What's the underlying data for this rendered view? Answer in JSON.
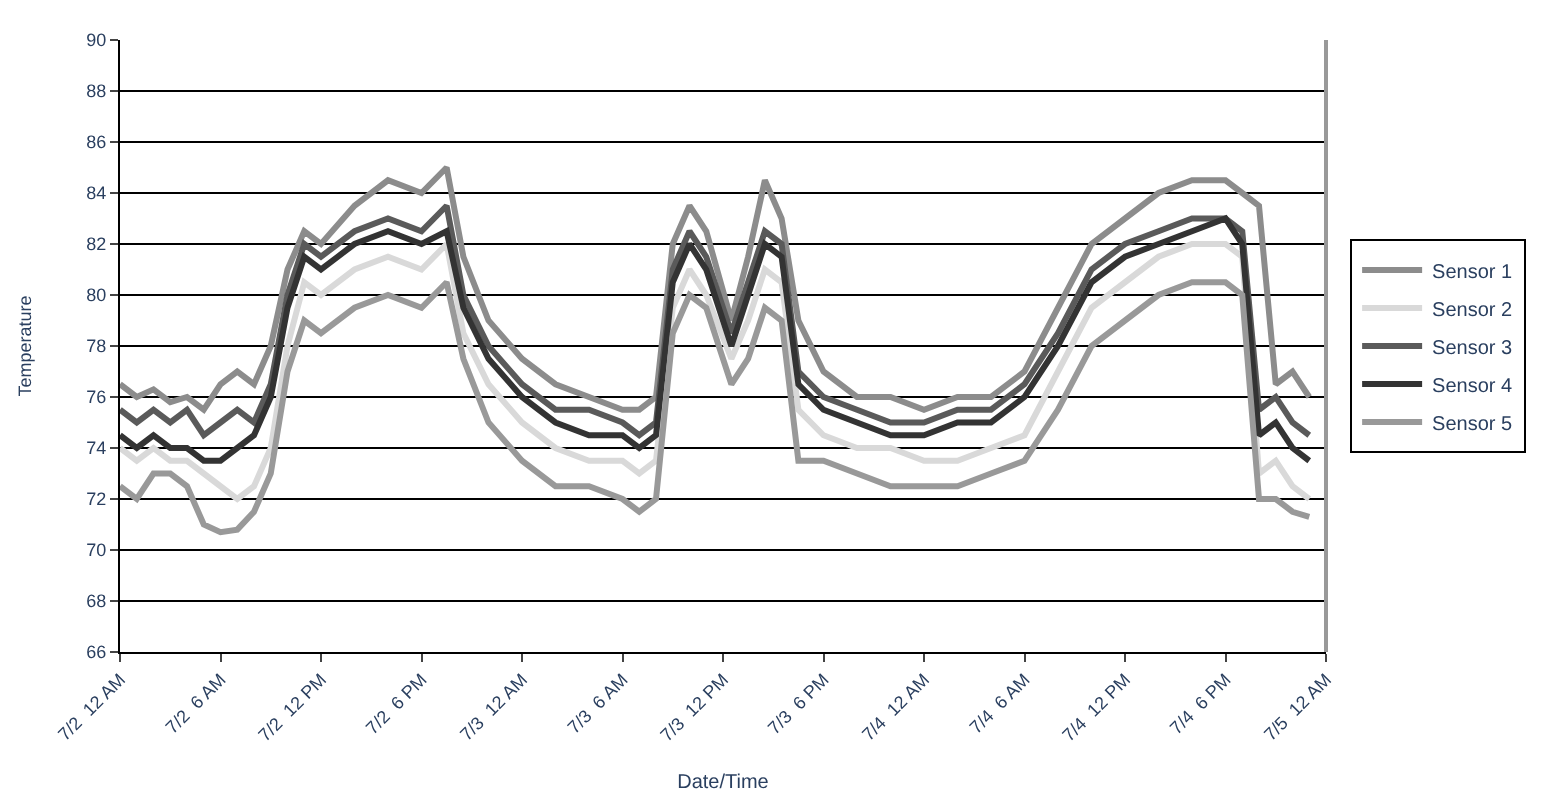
{
  "chart_data": {
    "type": "line",
    "xlabel": "Date/Time",
    "ylabel": "Temperature",
    "x": [
      "--07-02T00:00",
      "--07-02T01:00",
      "--07-02T02:00",
      "--07-02T03:00",
      "--07-02T04:00",
      "--07-02T05:00",
      "--07-02T06:00",
      "--07-02T07:00",
      "--07-02T08:00",
      "--07-02T09:00",
      "--07-02T10:00",
      "--07-02T11:00",
      "--07-02T12:00",
      "--07-02T14:00",
      "--07-02T16:00",
      "--07-02T18:00",
      "--07-02T19:30",
      "--07-02T20:30",
      "--07-02T22:00",
      "--07-03T00:00",
      "--07-03T02:00",
      "--07-03T04:00",
      "--07-03T06:00",
      "--07-03T07:00",
      "--07-03T08:00",
      "--07-03T09:00",
      "--07-03T10:00",
      "--07-03T11:00",
      "--07-03T12:30",
      "--07-03T13:30",
      "--07-03T14:30",
      "--07-03T15:30",
      "--07-03T16:30",
      "--07-03T18:00",
      "--07-03T20:00",
      "--07-03T22:00",
      "--07-04T00:00",
      "--07-04T02:00",
      "--07-04T04:00",
      "--07-04T06:00",
      "--07-04T08:00",
      "--07-04T10:00",
      "--07-04T12:00",
      "--07-04T14:00",
      "--07-04T16:00",
      "--07-04T18:00",
      "--07-04T19:00",
      "--07-04T20:00",
      "--07-04T21:00",
      "--07-04T22:00",
      "--07-04T23:00"
    ],
    "series": [
      {
        "name": "Sensor 1",
        "color": "#8c8c8c",
        "values": [
          76.5,
          76,
          76.3,
          75.8,
          76,
          75.5,
          76.5,
          77,
          76.5,
          78,
          81,
          82.5,
          82,
          83.5,
          84.5,
          84,
          85,
          81.5,
          79,
          77.5,
          76.5,
          76,
          75.5,
          75.5,
          76,
          82,
          83.5,
          82.5,
          79,
          81.5,
          84.5,
          83,
          79,
          77,
          76,
          76,
          75.5,
          76,
          76,
          77,
          79.5,
          82,
          83,
          84,
          84.5,
          84.5,
          84,
          83.5,
          76.5,
          77,
          76
        ]
      },
      {
        "name": "Sensor 2",
        "color": "#d9d9d9",
        "values": [
          74,
          73.5,
          74,
          73.5,
          73.5,
          73,
          72.5,
          72,
          72.5,
          74,
          78,
          80.5,
          80,
          81,
          81.5,
          81,
          82,
          78.5,
          76.5,
          75,
          74,
          73.5,
          73.5,
          73,
          73.5,
          79.5,
          81,
          80,
          77.5,
          79,
          81,
          80.5,
          75.5,
          74.5,
          74,
          74,
          73.5,
          73.5,
          74,
          74.5,
          77,
          79.5,
          80.5,
          81.5,
          82,
          82,
          81.5,
          73,
          73.5,
          72.5,
          72
        ]
      },
      {
        "name": "Sensor 3",
        "color": "#5a5a5a",
        "values": [
          75.5,
          75,
          75.5,
          75,
          75.5,
          74.5,
          75,
          75.5,
          75,
          76.5,
          80,
          82,
          81.5,
          82.5,
          83,
          82.5,
          83.5,
          80,
          78,
          76.5,
          75.5,
          75.5,
          75,
          74.5,
          75,
          81,
          82.5,
          81.5,
          78.5,
          80.5,
          82.5,
          82,
          77,
          76,
          75.5,
          75,
          75,
          75.5,
          75.5,
          76.5,
          78.5,
          81,
          82,
          82.5,
          83,
          83,
          82.5,
          75.5,
          76,
          75,
          74.5
        ]
      },
      {
        "name": "Sensor 4",
        "color": "#333333",
        "values": [
          74.5,
          74,
          74.5,
          74,
          74,
          73.5,
          73.5,
          74,
          74.5,
          76,
          79.5,
          81.5,
          81,
          82,
          82.5,
          82,
          82.5,
          79.5,
          77.5,
          76,
          75,
          74.5,
          74.5,
          74,
          74.5,
          80.5,
          82,
          81,
          78,
          80,
          82,
          81.5,
          76.5,
          75.5,
          75,
          74.5,
          74.5,
          75,
          75,
          76,
          78,
          80.5,
          81.5,
          82,
          82.5,
          83,
          82,
          74.5,
          75,
          74,
          73.5
        ]
      },
      {
        "name": "Sensor 5",
        "color": "#999999",
        "values": [
          72.5,
          72,
          73,
          73,
          72.5,
          71,
          70.7,
          70.8,
          71.5,
          73,
          77,
          79,
          78.5,
          79.5,
          80,
          79.5,
          80.5,
          77.5,
          75,
          73.5,
          72.5,
          72.5,
          72,
          71.5,
          72,
          78.5,
          80,
          79.5,
          76.5,
          77.5,
          79.5,
          79,
          73.5,
          73.5,
          73,
          72.5,
          72.5,
          72.5,
          73,
          73.5,
          75.5,
          78,
          79,
          80,
          80.5,
          80.5,
          80,
          72,
          72,
          71.5,
          71.3
        ]
      }
    ],
    "xlim": [
      "--07-02T00:00",
      "--07-05T00:00"
    ],
    "xticks": [
      {
        "value": "--07-02T00:00",
        "label": "7/2  12 AM"
      },
      {
        "value": "--07-02T06:00",
        "label": "7/2  6 AM"
      },
      {
        "value": "--07-02T12:00",
        "label": "7/2  12 PM"
      },
      {
        "value": "--07-02T18:00",
        "label": "7/2  6 PM"
      },
      {
        "value": "--07-03T00:00",
        "label": "7/3  12 AM"
      },
      {
        "value": "--07-03T06:00",
        "label": "7/3  6 AM"
      },
      {
        "value": "--07-03T12:00",
        "label": "7/3  12 PM"
      },
      {
        "value": "--07-03T18:00",
        "label": "7/3  6 PM"
      },
      {
        "value": "--07-04T00:00",
        "label": "7/4  12 AM"
      },
      {
        "value": "--07-04T06:00",
        "label": "7/4  6 AM"
      },
      {
        "value": "--07-04T12:00",
        "label": "7/4  12 PM"
      },
      {
        "value": "--07-04T18:00",
        "label": "7/4  6 PM"
      },
      {
        "value": "--07-05T00:00",
        "label": "7/5  12 AM"
      }
    ],
    "ylim": [
      66,
      90
    ],
    "yticks": [
      66,
      68,
      70,
      72,
      74,
      76,
      78,
      80,
      82,
      84,
      86,
      88,
      90
    ],
    "grid": "y",
    "legend": "right",
    "marker": "none",
    "line_style": "solid"
  }
}
